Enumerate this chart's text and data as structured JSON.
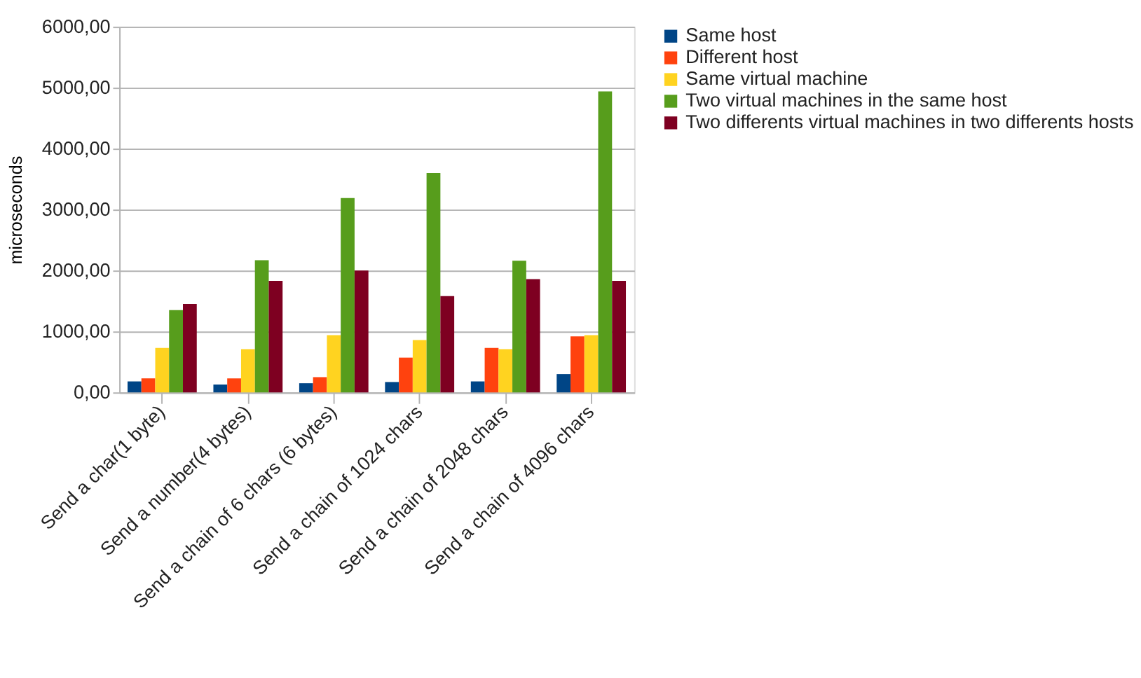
{
  "chart_data": {
    "type": "bar",
    "ylabel": "microseconds",
    "categories": [
      "Send a char(1 byte)",
      "Send a number(4 bytes)",
      "Send a chain of 6 chars (6 bytes)",
      "Send a chain of 1024 chars",
      "Send a chain of 2048 chars",
      "Send a chain of 4096 chars"
    ],
    "series": [
      {
        "name": "Same host",
        "color": "#004586",
        "values": [
          180,
          130,
          150,
          170,
          180,
          300
        ]
      },
      {
        "name": "Different host",
        "color": "#ff420e",
        "values": [
          230,
          230,
          250,
          570,
          730,
          920
        ]
      },
      {
        "name": "Same virtual machine",
        "color": "#ffd320",
        "values": [
          730,
          710,
          940,
          860,
          710,
          940
        ]
      },
      {
        "name": "Two virtual machines in the same host",
        "color": "#579d1c",
        "values": [
          1350,
          2170,
          3190,
          3600,
          2160,
          4940
        ]
      },
      {
        "name": "Two differents virtual machines in two differents hosts",
        "color": "#7e0021",
        "values": [
          1450,
          1830,
          2000,
          1580,
          1860,
          1830
        ]
      }
    ],
    "ylim": [
      0,
      6000
    ],
    "yticks": [
      {
        "value": 0,
        "label": "0,00"
      },
      {
        "value": 1000,
        "label": "1000,00"
      },
      {
        "value": 2000,
        "label": "2000,00"
      },
      {
        "value": 3000,
        "label": "3000,00"
      },
      {
        "value": 4000,
        "label": "4000,00"
      },
      {
        "value": 5000,
        "label": "5000,00"
      },
      {
        "value": 6000,
        "label": "6000,00"
      }
    ],
    "grid": "y",
    "legend": "right"
  }
}
